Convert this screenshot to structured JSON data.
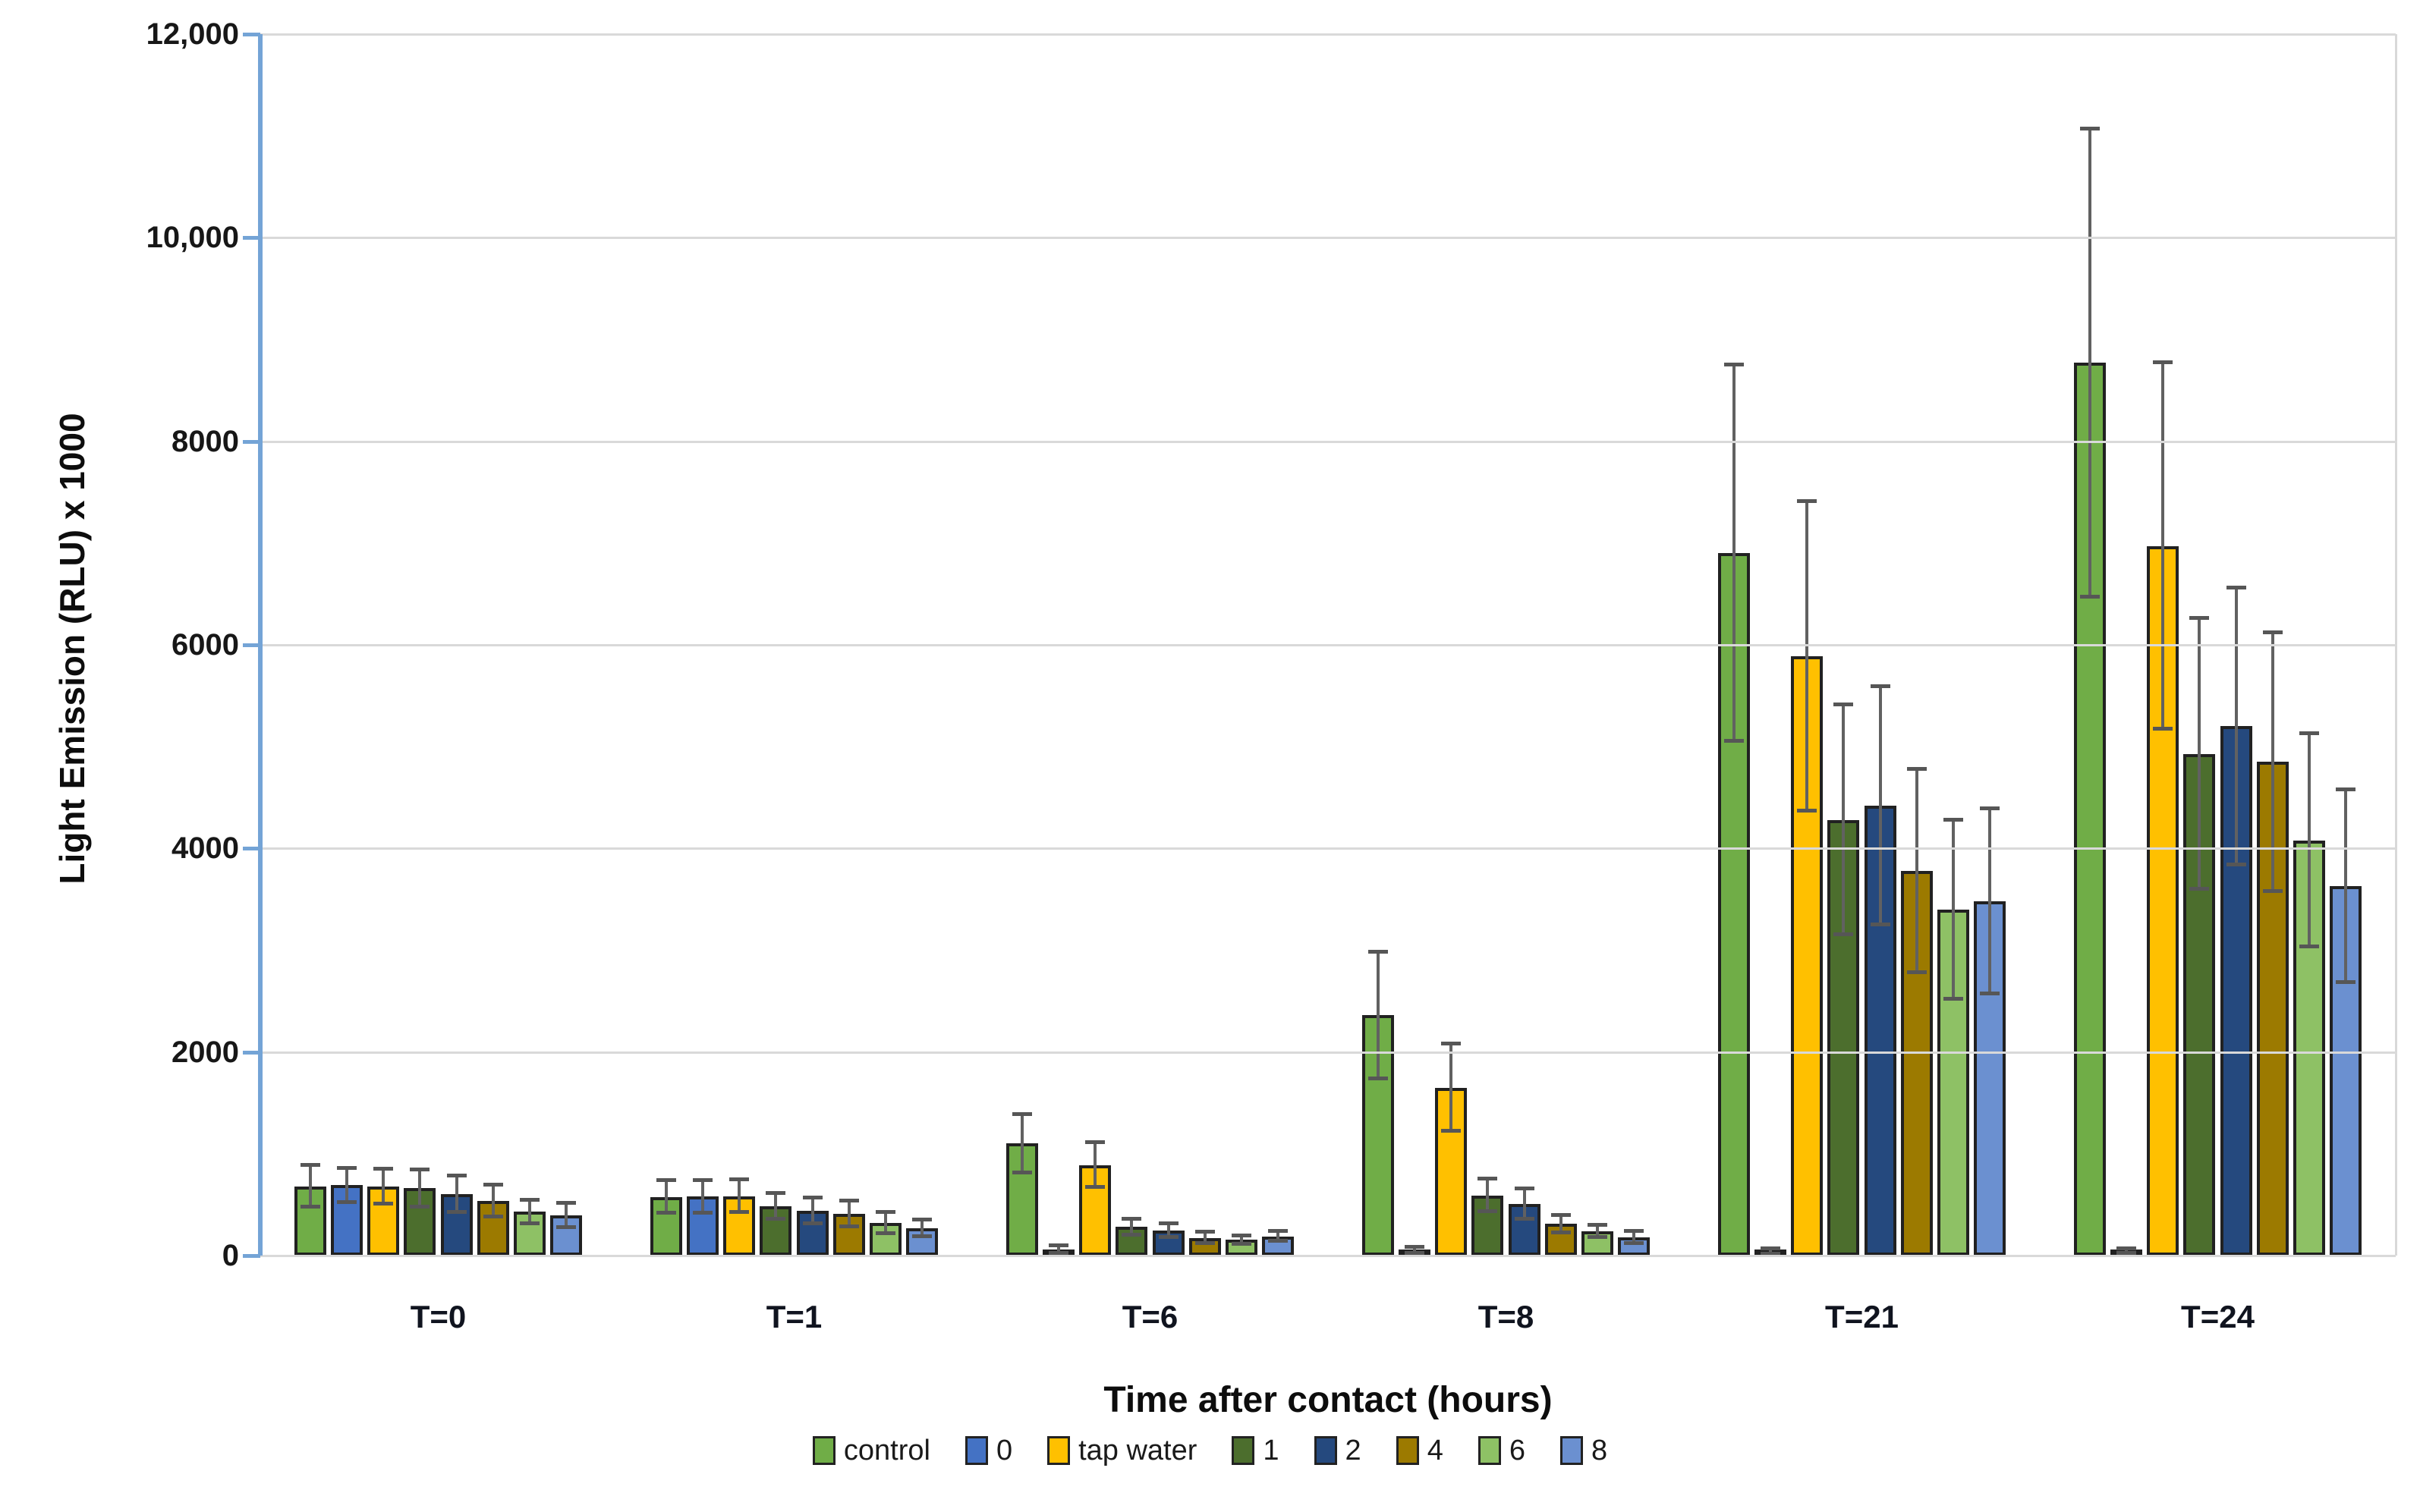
{
  "chart_data": {
    "type": "bar",
    "title": "",
    "xlabel": "Time after contact (hours)",
    "ylabel": "Light Emission (RLU) x 1000",
    "categories": [
      "T=0",
      "T=1",
      "T=6",
      "T=8",
      "T=21",
      "T=24"
    ],
    "y_tick_labels": [
      "12,000",
      "10,000",
      "8000",
      "6000",
      "4000",
      "2000",
      "0"
    ],
    "ylim": [
      0,
      12000
    ],
    "grid": "horizontal",
    "legend_position": "bottom",
    "error_bars": true,
    "series": [
      {
        "name": "control",
        "color": "#70AD47",
        "values": [
          680,
          575,
          1100,
          2360,
          6900,
          8770
        ],
        "errors": [
          205,
          160,
          290,
          620,
          1850,
          2300
        ]
      },
      {
        "name": "0",
        "color": "#4472C4",
        "values": [
          690,
          580,
          60,
          50,
          40,
          45
        ],
        "errors": [
          165,
          160,
          40,
          30,
          25,
          25
        ]
      },
      {
        "name": "tap water",
        "color": "#FFC000",
        "values": [
          680,
          585,
          890,
          1650,
          5890,
          6970
        ],
        "errors": [
          170,
          160,
          220,
          430,
          1520,
          1800
        ]
      },
      {
        "name": "1",
        "color": "#4C6E2D",
        "values": [
          660,
          485,
          280,
          590,
          4280,
          4930
        ],
        "errors": [
          180,
          130,
          75,
          160,
          1130,
          1330
        ]
      },
      {
        "name": "2",
        "color": "#25497E",
        "values": [
          605,
          440,
          245,
          505,
          4420,
          5200
        ],
        "errors": [
          180,
          125,
          65,
          150,
          1170,
          1360
        ]
      },
      {
        "name": "4",
        "color": "#9C7A00",
        "values": [
          535,
          410,
          175,
          310,
          3780,
          4850
        ],
        "errors": [
          155,
          130,
          55,
          85,
          1000,
          1270
        ]
      },
      {
        "name": "6",
        "color": "#8EC165",
        "values": [
          430,
          320,
          155,
          240,
          3400,
          4080
        ],
        "errors": [
          115,
          105,
          40,
          60,
          880,
          1050
        ]
      },
      {
        "name": "8",
        "color": "#6B90D0",
        "values": [
          395,
          270,
          190,
          180,
          3480,
          3630
        ],
        "errors": [
          120,
          80,
          45,
          60,
          910,
          950
        ]
      }
    ]
  }
}
